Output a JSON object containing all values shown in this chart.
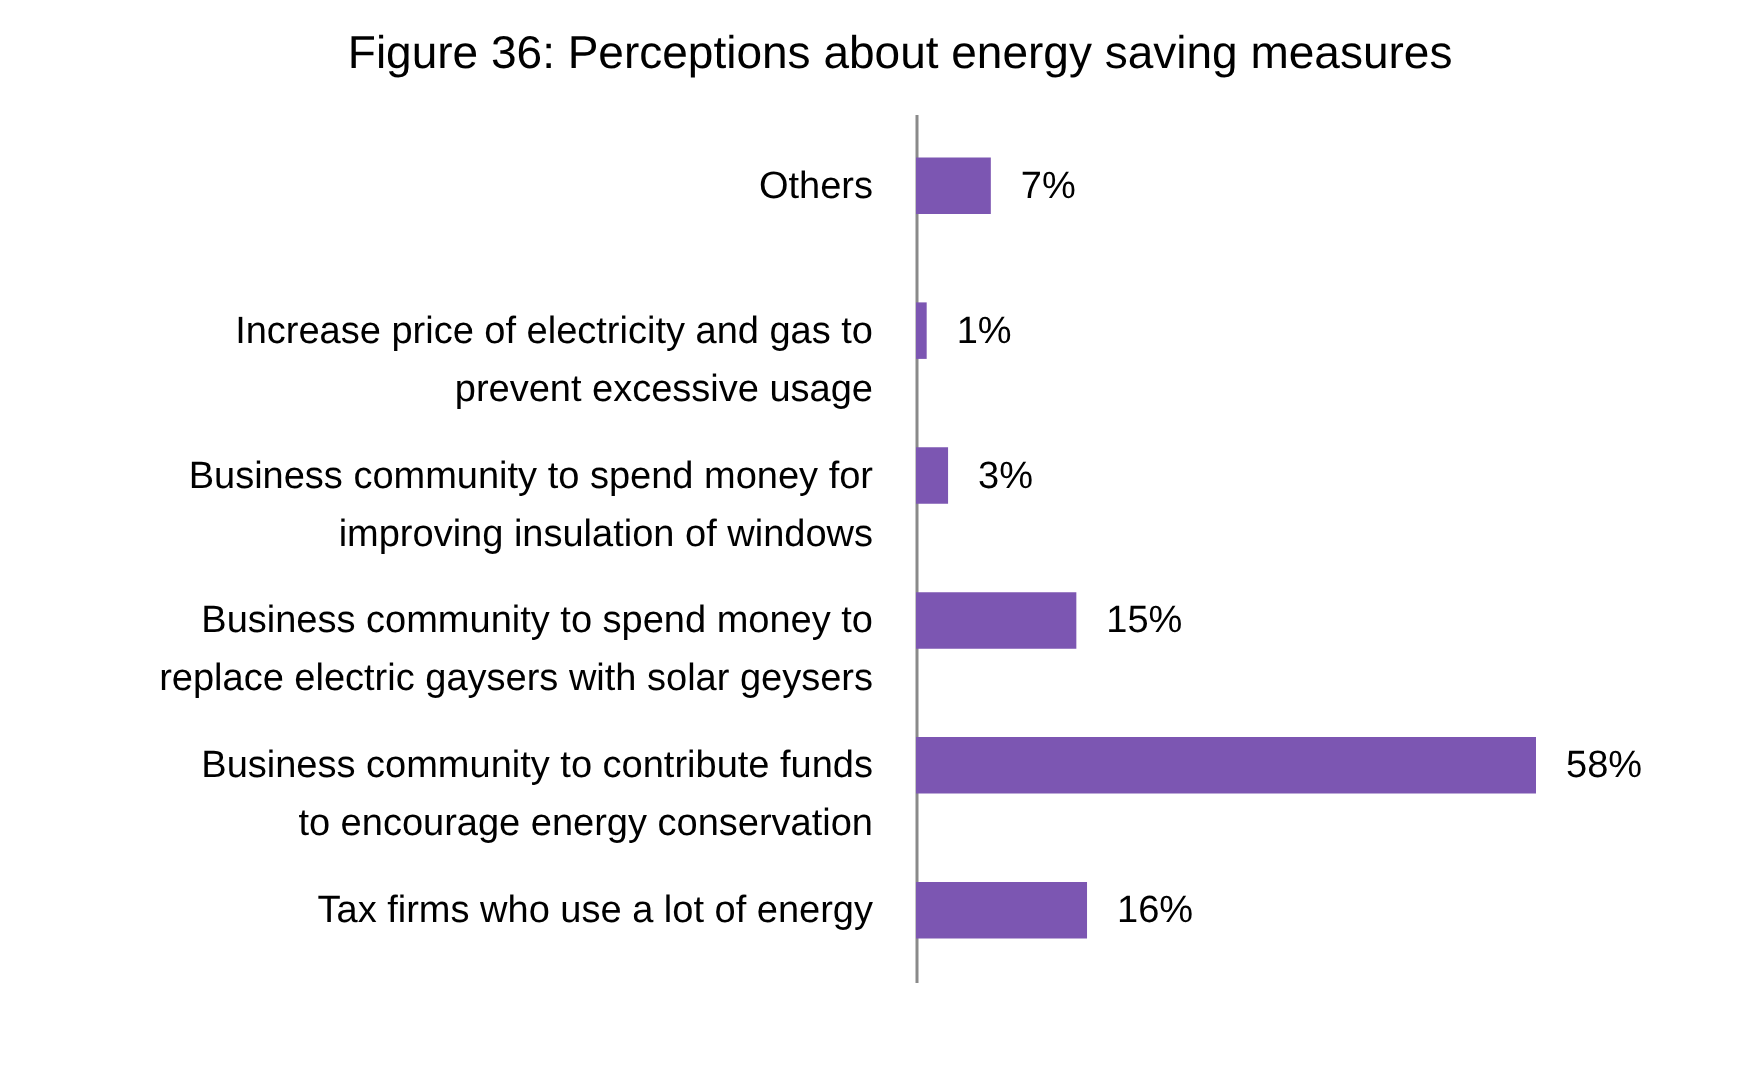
{
  "chart_data": {
    "type": "bar",
    "orientation": "horizontal",
    "title": "Figure 36: Perceptions about energy saving measures",
    "categories": [
      "Others",
      "Increase price of electricity and gas to\nprevent excessive usage",
      "Business community to spend money for\nimproving insulation of windows",
      "Business community to spend money to\nreplace electric gaysers with solar geysers",
      "Business community to contribute funds\nto encourage energy conservation",
      "Tax firms who use a lot of energy"
    ],
    "values": [
      7,
      1,
      3,
      15,
      58,
      16
    ],
    "color": "#7c56b2",
    "value_labels": [
      "7%",
      "1%",
      "3%",
      "15%",
      "58%",
      "16%"
    ],
    "tick_labels": "y"
  }
}
